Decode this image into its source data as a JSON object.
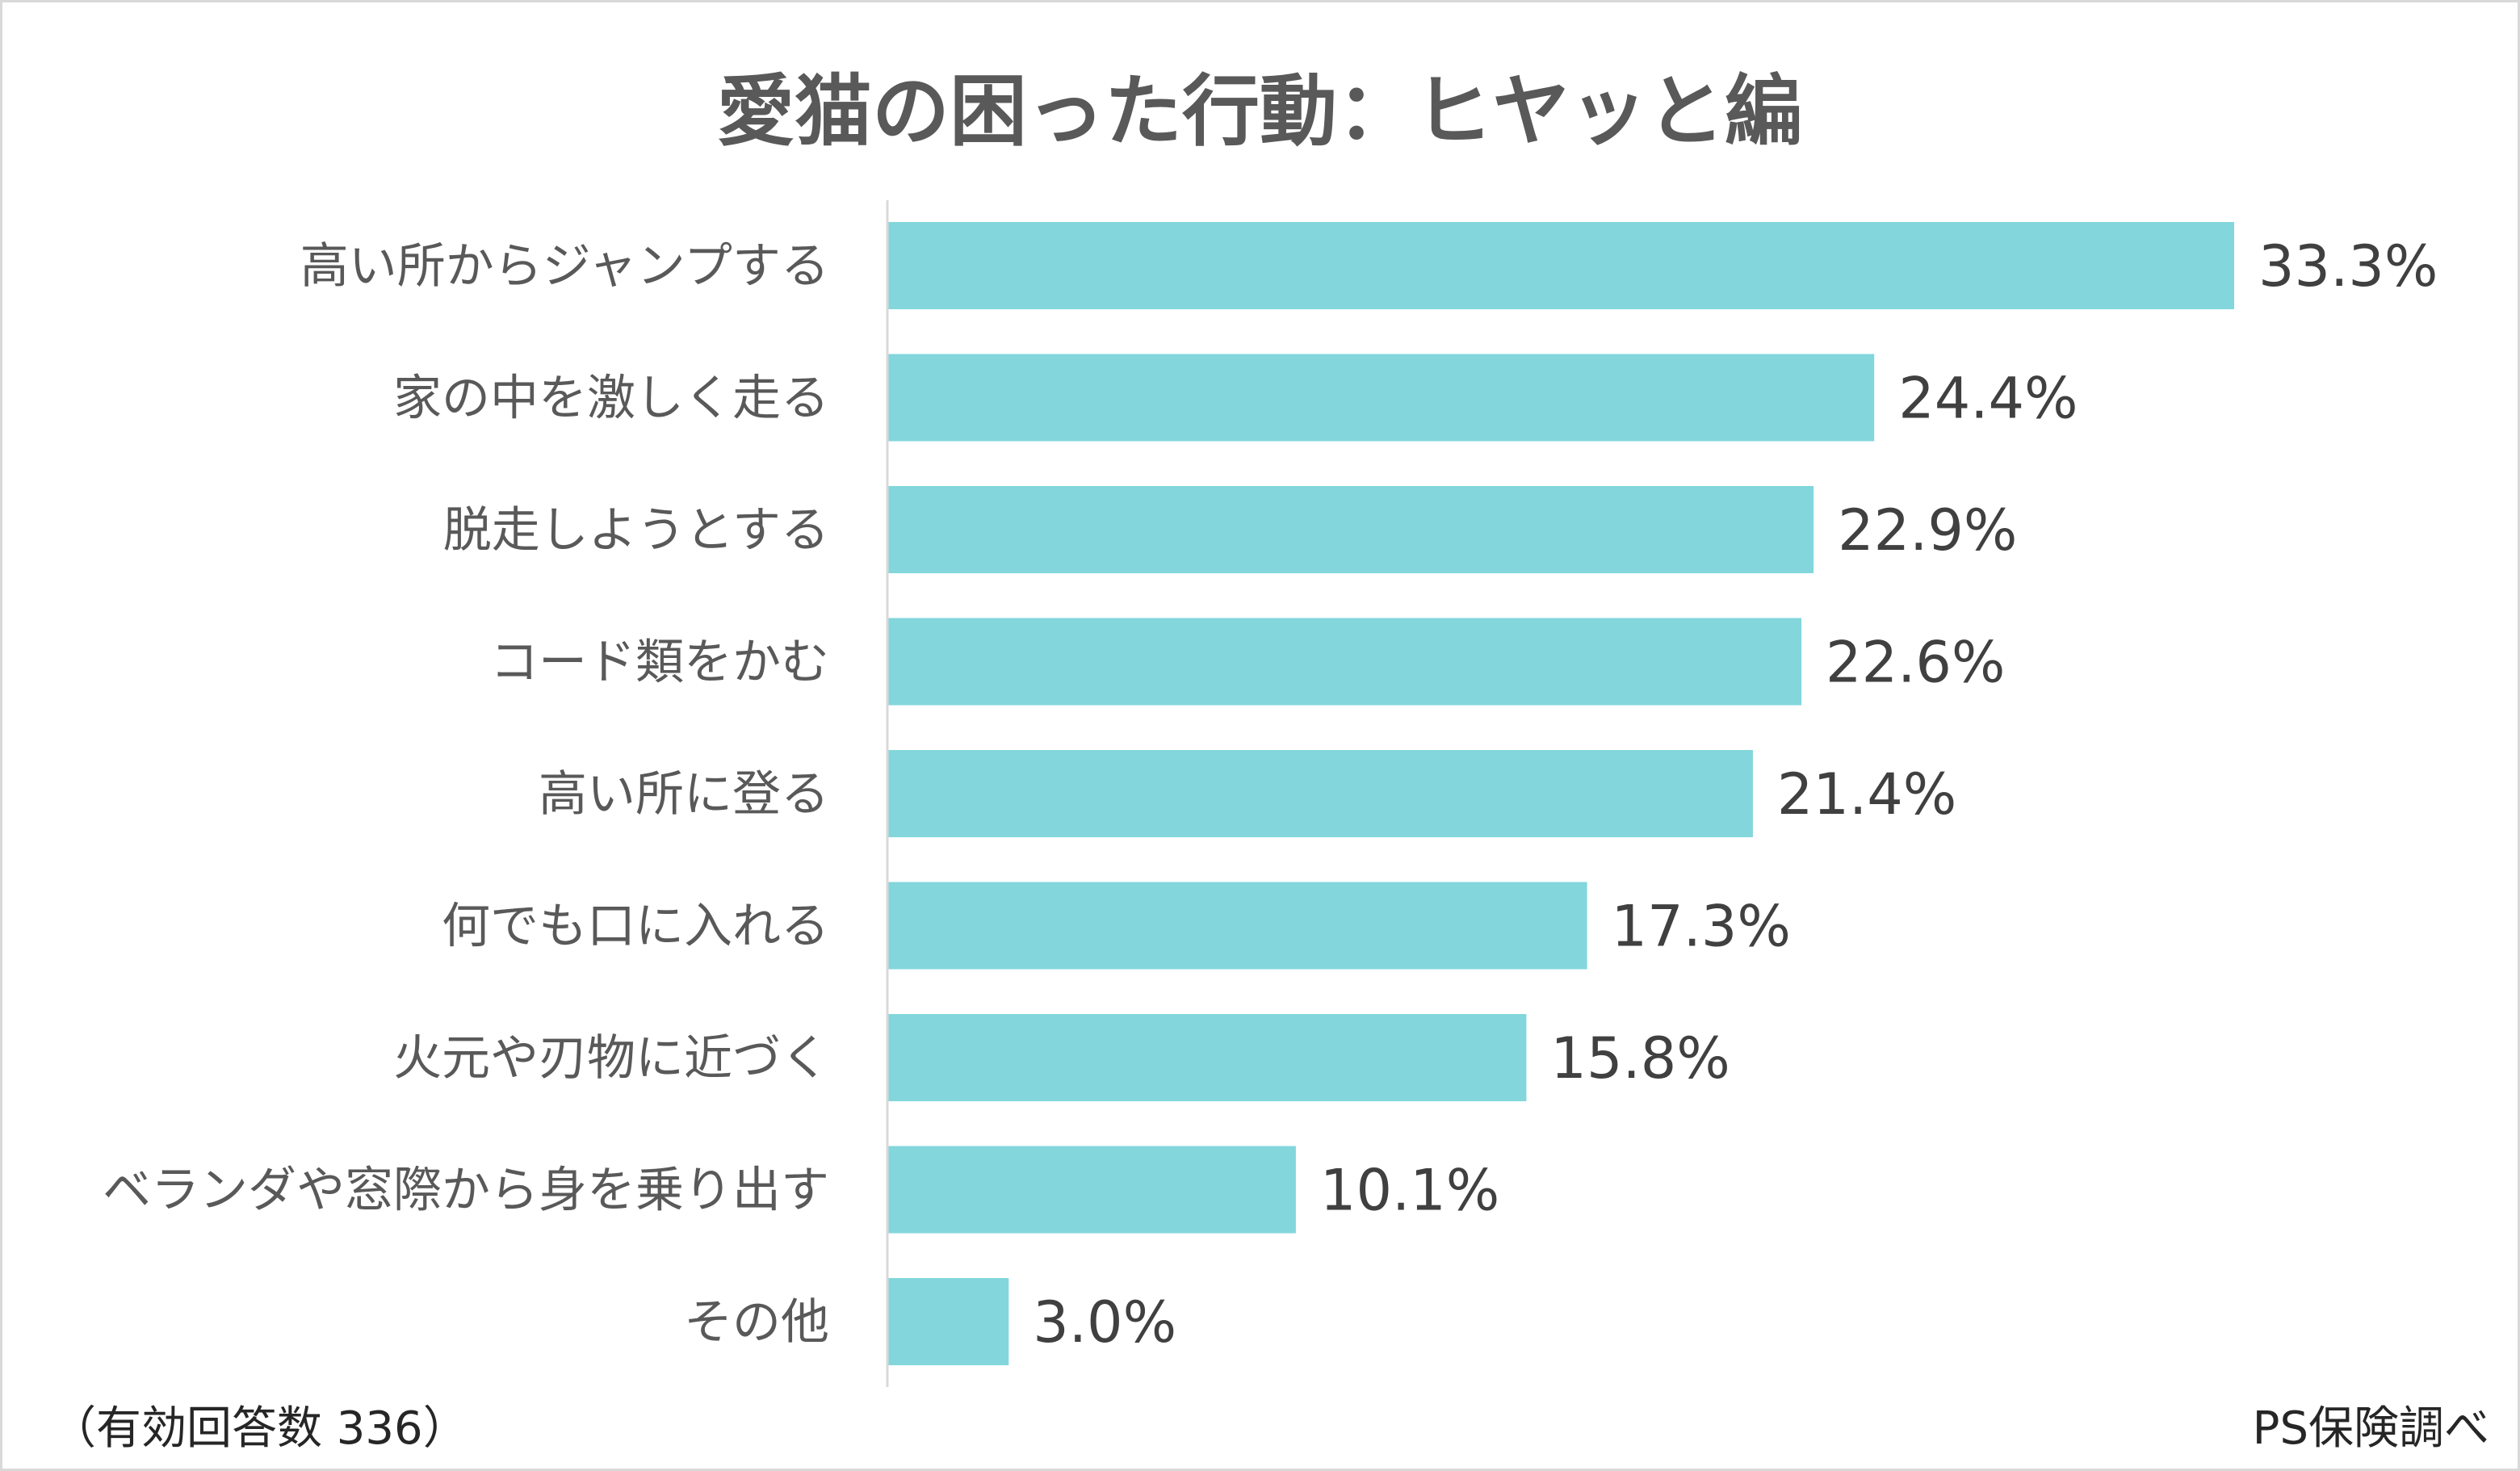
{
  "chart_data": {
    "type": "bar",
    "orientation": "horizontal",
    "title": "愛猫の困った行動：ヒヤッと編",
    "categories": [
      "高い所からジャンプする",
      "家の中を激しく走る",
      "脱走しようとする",
      "コード類をかむ",
      "高い所に登る",
      "何でも口に入れる",
      "火元や刃物に近づく",
      "ベランダや窓際から身を乗り出す",
      "その他"
    ],
    "values": [
      33.3,
      24.4,
      22.9,
      22.6,
      21.4,
      17.3,
      15.8,
      10.1,
      3.0
    ],
    "value_labels": [
      "33.3%",
      "24.4%",
      "22.9%",
      "22.6%",
      "21.4%",
      "17.3%",
      "15.8%",
      "10.1%",
      "3.0%"
    ],
    "unit": "%",
    "xlim": [
      0,
      33.3
    ],
    "grid": false,
    "legend": "none",
    "bar_color": "#82d6dc",
    "axis_color": "#d9d9d9"
  },
  "footnote_left": "（有効回答数 336）",
  "footnote_right": "PS保険調べ"
}
